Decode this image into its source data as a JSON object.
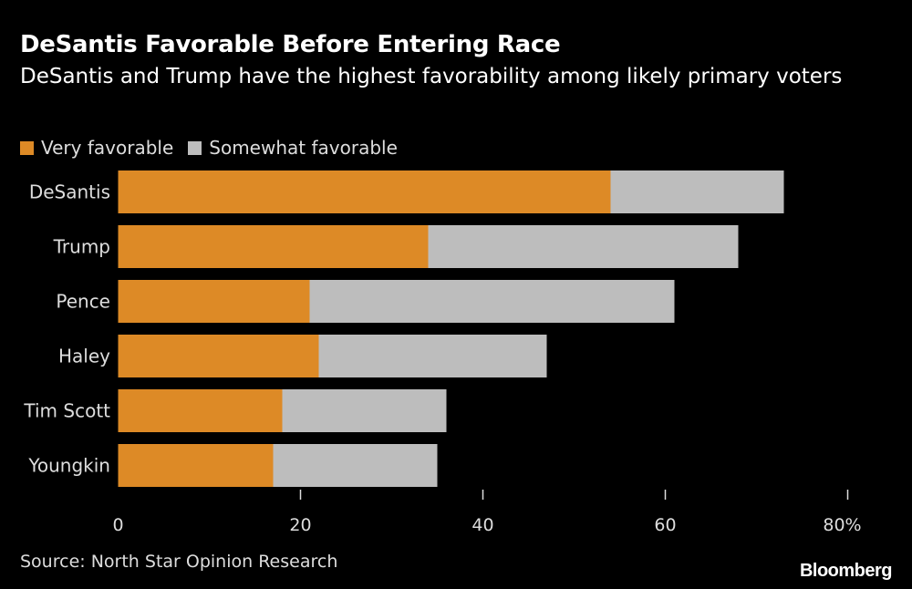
{
  "chart_data": {
    "type": "bar",
    "orientation": "horizontal",
    "stacked": true,
    "title": "DeSantis Favorable Before Entering Race",
    "subtitle": "DeSantis and Trump have the highest favorability among likely primary voters",
    "categories": [
      "DeSantis",
      "Trump",
      "Pence",
      "Haley",
      "Tim Scott",
      "Youngkin"
    ],
    "series": [
      {
        "name": "Very favorable",
        "color": "#dd8a26",
        "values": [
          54,
          34,
          21,
          22,
          18,
          17
        ]
      },
      {
        "name": "Somewhat favorable",
        "color": "#bdbdbd",
        "values": [
          19,
          34,
          40,
          25,
          18,
          18
        ]
      }
    ],
    "xlim": [
      0,
      80
    ],
    "xticks": [
      "0",
      "20",
      "40",
      "60",
      "80%"
    ],
    "grid": false,
    "legend": "top-left"
  },
  "source": "Source: North Star Opinion Research",
  "logo": "Bloomberg"
}
